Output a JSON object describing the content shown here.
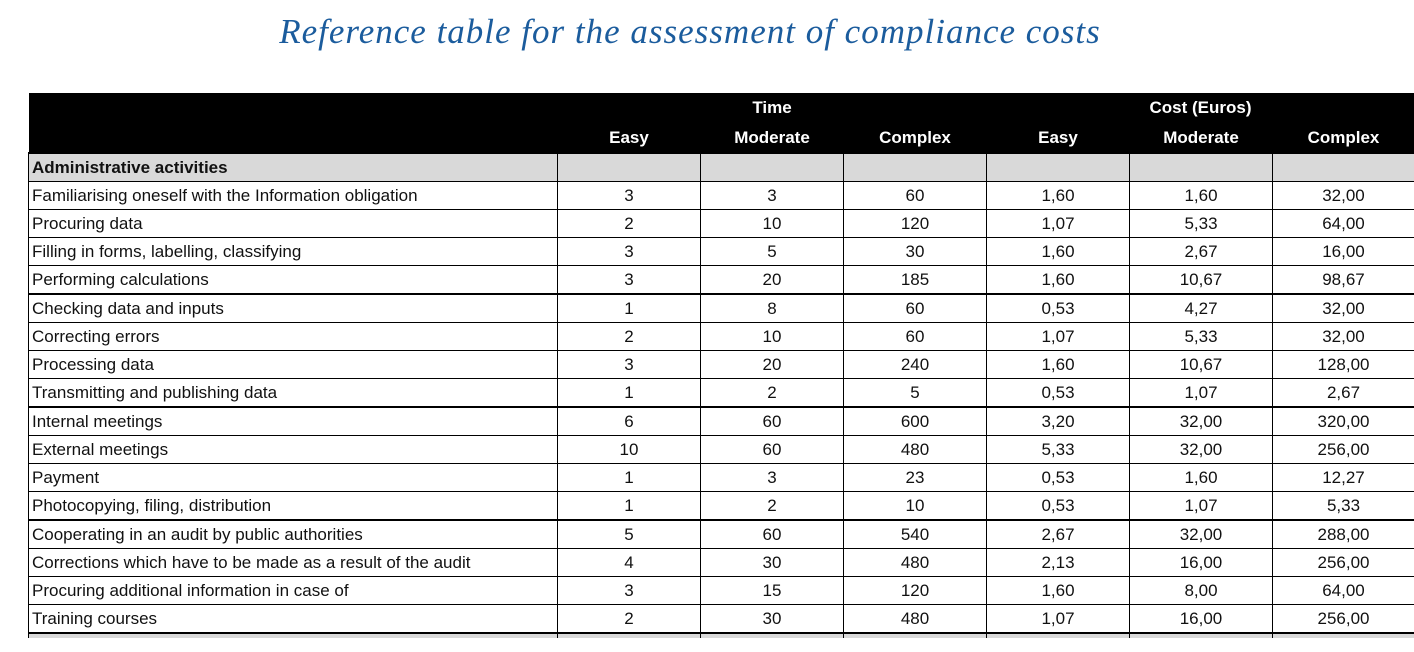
{
  "title": "Reference table for the assessment of compliance costs",
  "colors": {
    "title_blue": "#1b5c9d",
    "header_background": "#000000",
    "header_text": "#ffffff",
    "section_row_gray": "#d9d9d9",
    "border_black": "#000000"
  },
  "table": {
    "group_headers": {
      "time": "Time",
      "cost": "Cost (Euros)"
    },
    "sub_headers": [
      "Easy",
      "Moderate",
      "Complex",
      "Easy",
      "Moderate",
      "Complex"
    ],
    "section_label": "Administrative activities",
    "rows": [
      {
        "activity": "Familiarising oneself with the Information obligation",
        "values": [
          "3",
          "3",
          "60",
          "1,60",
          "1,60",
          "32,00"
        ]
      },
      {
        "activity": "Procuring data",
        "values": [
          "2",
          "10",
          "120",
          "1,07",
          "5,33",
          "64,00"
        ]
      },
      {
        "activity": "Filling in forms, labelling, classifying",
        "values": [
          "3",
          "5",
          "30",
          "1,60",
          "2,67",
          "16,00"
        ]
      },
      {
        "activity": "Performing calculations",
        "values": [
          "3",
          "20",
          "185",
          "1,60",
          "10,67",
          "98,67"
        ]
      },
      {
        "activity": "Checking data and inputs",
        "values": [
          "1",
          "8",
          "60",
          "0,53",
          "4,27",
          "32,00"
        ]
      },
      {
        "activity": "Correcting errors",
        "values": [
          "2",
          "10",
          "60",
          "1,07",
          "5,33",
          "32,00"
        ]
      },
      {
        "activity": "Processing data",
        "values": [
          "3",
          "20",
          "240",
          "1,60",
          "10,67",
          "128,00"
        ]
      },
      {
        "activity": "Transmitting and publishing data",
        "values": [
          "1",
          "2",
          "5",
          "0,53",
          "1,07",
          "2,67"
        ]
      },
      {
        "activity": "Internal meetings",
        "values": [
          "6",
          "60",
          "600",
          "3,20",
          "32,00",
          "320,00"
        ]
      },
      {
        "activity": "External meetings",
        "values": [
          "10",
          "60",
          "480",
          "5,33",
          "32,00",
          "256,00"
        ]
      },
      {
        "activity": "Payment",
        "values": [
          "1",
          "3",
          "23",
          "0,53",
          "1,60",
          "12,27"
        ]
      },
      {
        "activity": "Photocopying, filing, distribution",
        "values": [
          "1",
          "2",
          "10",
          "0,53",
          "1,07",
          "5,33"
        ]
      },
      {
        "activity": "Cooperating in an audit by public authorities",
        "values": [
          "5",
          "60",
          "540",
          "2,67",
          "32,00",
          "288,00"
        ]
      },
      {
        "activity": "Corrections which have to be made as a result of the audit",
        "values": [
          "4",
          "30",
          "480",
          "2,13",
          "16,00",
          "256,00"
        ]
      },
      {
        "activity": "Procuring additional information in case of",
        "values": [
          "3",
          "15",
          "120",
          "1,60",
          "8,00",
          "64,00"
        ]
      },
      {
        "activity": "Training courses",
        "values": [
          "2",
          "30",
          "480",
          "1,07",
          "16,00",
          "256,00"
        ]
      }
    ],
    "partial_next_section": true
  }
}
